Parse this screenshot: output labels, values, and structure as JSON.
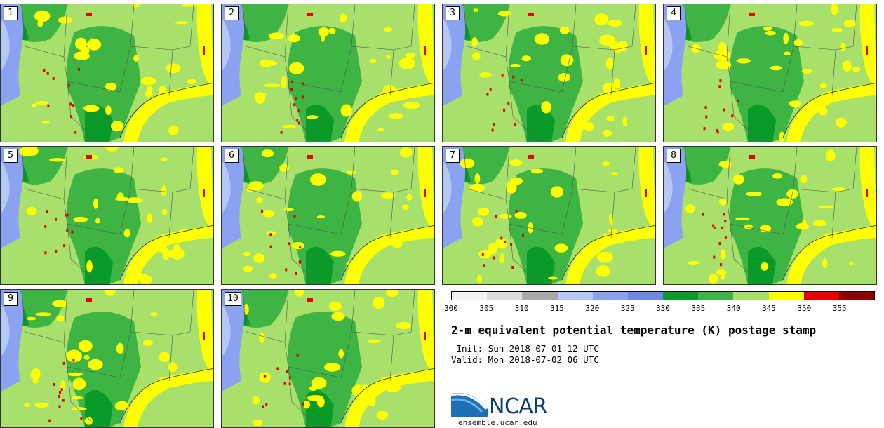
{
  "title": "2-m equivalent potential temperature (K) postage stamp",
  "init": " Init: Sun 2018-07-01 12 UTC",
  "valid": "Valid: Mon 2018-07-02 06 UTC",
  "site": "ensemble.ucar.edu",
  "logo_text": "NCAR",
  "members": [
    "1",
    "2",
    "3",
    "4",
    "5",
    "6",
    "7",
    "8",
    "9",
    "10"
  ],
  "colorbar": {
    "ticks": [
      "300",
      "305",
      "310",
      "315",
      "320",
      "325",
      "330",
      "335",
      "340",
      "345",
      "350",
      "355"
    ],
    "colors": [
      "#f4f4f4",
      "#dcdcdc",
      "#a9a9a9",
      "#b5c8f4",
      "#8aa2f0",
      "#6f88e6",
      "#0a9a2a",
      "#3eb445",
      "#a7e06a",
      "#ffff00",
      "#e60000",
      "#8b0000"
    ]
  }
}
